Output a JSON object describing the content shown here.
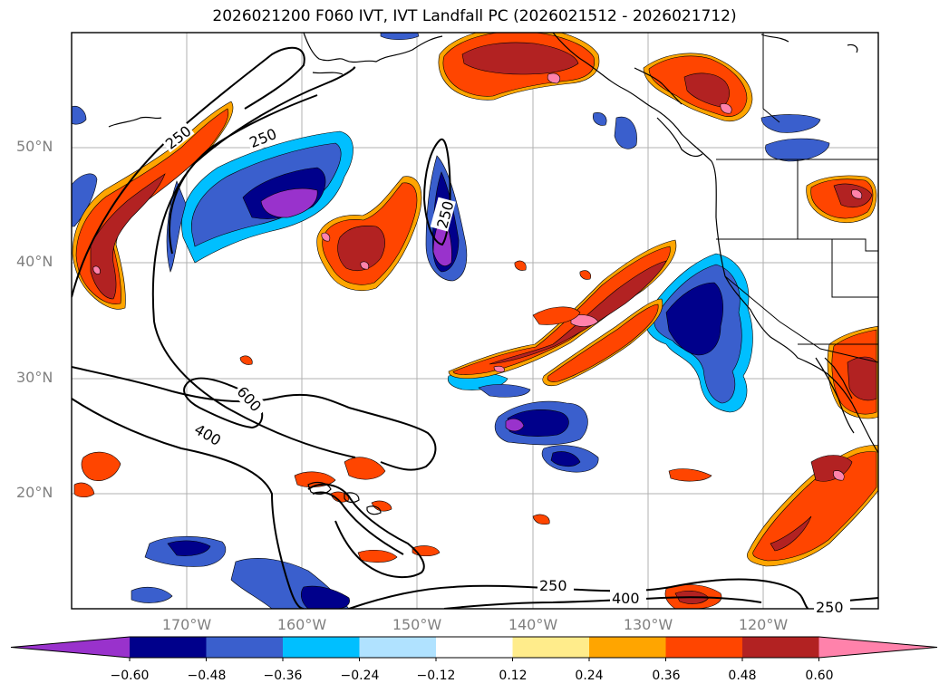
{
  "title": "2026021200 F060 IVT, IVT Landfall PC (2026021512 - 2026021712)",
  "latitude_labels": [
    "50°N",
    "40°N",
    "30°N",
    "20°N"
  ],
  "longitude_labels": [
    "170°W",
    "160°W",
    "150°W",
    "140°W",
    "130°W",
    "120°W"
  ],
  "contour_labels": [
    "250",
    "250",
    "250",
    "600",
    "400",
    "250",
    "400",
    "250"
  ],
  "colorbar": {
    "tick_labels": [
      "−0.60",
      "−0.48",
      "−0.36",
      "−0.24",
      "−0.12",
      "0.12",
      "0.24",
      "0.36",
      "0.48",
      "0.60"
    ],
    "colors": [
      "#9932cc",
      "#00008b",
      "#3a5fcd",
      "#00bfff",
      "#b0e2ff",
      "#ffffff",
      "#ffec8b",
      "#ffa500",
      "#ff4500",
      "#b22222",
      "#ff82ab"
    ]
  }
}
